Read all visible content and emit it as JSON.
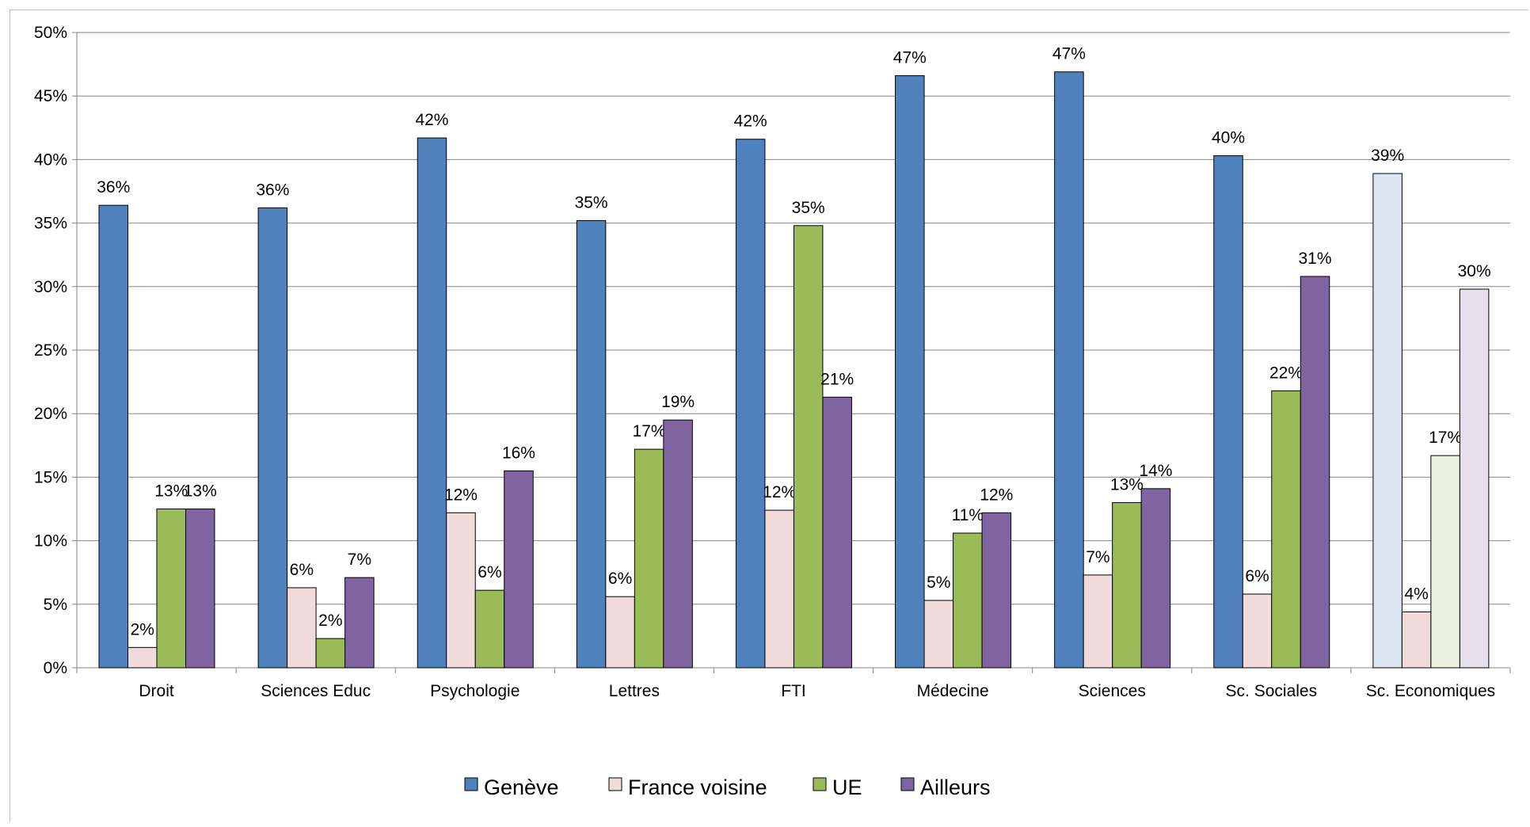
{
  "chart_data": {
    "type": "bar",
    "title": "",
    "xlabel": "",
    "ylabel": "",
    "ylim": [
      0,
      0.5
    ],
    "y_ticks": [
      "0%",
      "5%",
      "10%",
      "15%",
      "20%",
      "25%",
      "30%",
      "35%",
      "40%",
      "45%",
      "50%"
    ],
    "grid": true,
    "legend_position": "bottom",
    "categories": [
      "Droit",
      "Sciences Educ",
      "Psychologie",
      "Lettres",
      "FTI",
      "Médecine",
      "Sciences",
      "Sc. Sociales",
      "Sc. Economiques"
    ],
    "series": [
      {
        "name": "Genève",
        "color": "#4f81bd",
        "values": [
          0.364,
          0.362,
          0.417,
          0.352,
          0.416,
          0.466,
          0.469,
          0.403,
          0.389
        ],
        "labels": [
          "36%",
          "36%",
          "42%",
          "35%",
          "42%",
          "47%",
          "47%",
          "40%",
          "39%"
        ]
      },
      {
        "name": "France voisine",
        "color": "#f2dcdb",
        "values": [
          0.016,
          0.063,
          0.122,
          0.056,
          0.124,
          0.053,
          0.073,
          0.058,
          0.044
        ],
        "labels": [
          "2%",
          "6%",
          "12%",
          "6%",
          "12%",
          "5%",
          "7%",
          "6%",
          "4%"
        ]
      },
      {
        "name": "UE",
        "color": "#9bbb59",
        "values": [
          0.125,
          0.023,
          0.061,
          0.172,
          0.348,
          0.106,
          0.13,
          0.218,
          0.167
        ],
        "labels": [
          "13%",
          "2%",
          "6%",
          "17%",
          "35%",
          "11%",
          "13%",
          "22%",
          "17%"
        ]
      },
      {
        "name": "Ailleurs",
        "color": "#8064a2",
        "values": [
          0.125,
          0.071,
          0.155,
          0.195,
          0.213,
          0.122,
          0.141,
          0.308,
          0.298
        ],
        "labels": [
          "13%",
          "7%",
          "16%",
          "19%",
          "21%",
          "12%",
          "14%",
          "31%",
          "30%"
        ]
      }
    ],
    "faded_colors": [
      "#dbe5f1",
      "#f2dcdb",
      "#ebf1de",
      "#e5e0ec"
    ],
    "faded_category": "Sc. Economiques"
  }
}
